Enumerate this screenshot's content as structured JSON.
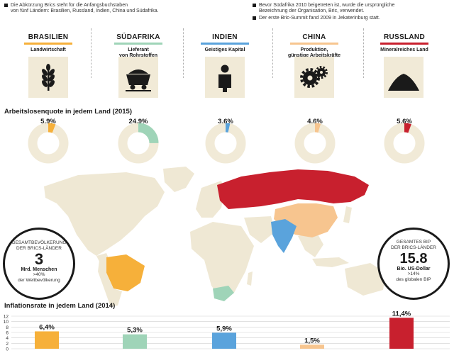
{
  "notes": {
    "left": [
      "Die Abkürzung Brics steht für die Anfangsbuchstaben",
      "von fünf Ländern: Brasilien, Russland, Indien, China und Südafrika."
    ],
    "right1": [
      "Bevor Südafrika 2010 beigetreten ist, wurde die ursprüngliche",
      "Bezeichnung der Organisation, Bric, verwendet."
    ],
    "right2": [
      "Der erste Bric-Summit fand 2009 in Jekaterinburg statt."
    ]
  },
  "countries": [
    {
      "name": "BRASILIEN",
      "desc": [
        "Landwirtschaft"
      ],
      "color": "#f6b03a",
      "icon": "wheat-icon"
    },
    {
      "name": "SÜDAFRIKA",
      "desc": [
        "Lieferant",
        "von Rohrstoffen"
      ],
      "color": "#9fd4b8",
      "icon": "mine-cart-icon"
    },
    {
      "name": "INDIEN",
      "desc": [
        "Geistiges Kapital"
      ],
      "color": "#5aa3dc",
      "icon": "person-icon"
    },
    {
      "name": "CHINA",
      "desc": [
        "Produktion,",
        "günstige Arbeitskräfte"
      ],
      "color": "#f7c58f",
      "icon": "gears-icon"
    },
    {
      "name": "RUSSLAND",
      "desc": [
        "Mineralreiches Land"
      ],
      "color": "#c8202e",
      "icon": "mountain-icon"
    }
  ],
  "unemployment_title": "Arbeitslosenquote in jedem Land (2015)",
  "population": {
    "head": [
      "GESAMTBEVÖLKERUNG",
      "DER BRICS-LÄNDER"
    ],
    "value": "3",
    "unit": "Mrd. Menschen",
    "foot": [
      ">40%",
      "der Weltbevölkerung"
    ]
  },
  "gdp": {
    "head": [
      "GESAMTES BIP",
      "DER BRICS-LÄNDER"
    ],
    "value": "15.8",
    "unit": "Bio. US-Dollar",
    "foot": [
      ">14%",
      "des globalen BIP"
    ]
  },
  "inflation_title": "Inflationsrate in jedem Land (2014)",
  "chart_data": [
    {
      "type": "pie",
      "title": "Arbeitslosenquote in jedem Land (2015)",
      "categories": [
        "BRASILIEN",
        "SÜDAFRIKA",
        "INDIEN",
        "CHINA",
        "RUSSLAND"
      ],
      "values": [
        5.9,
        24.9,
        3.6,
        4.6,
        5.6
      ],
      "labels": [
        "5,9%",
        "24,9%",
        "3,6%",
        "4,6%",
        "5,6%"
      ],
      "colors": [
        "#f6b03a",
        "#9fd4b8",
        "#5aa3dc",
        "#f7c58f",
        "#c8202e"
      ]
    },
    {
      "type": "bar",
      "title": "Inflationsrate in jedem Land (2014)",
      "categories": [
        "BRASILIEN",
        "SÜDAFRIKA",
        "INDIEN",
        "CHINA",
        "RUSSLAND"
      ],
      "values": [
        6.4,
        5.3,
        5.9,
        1.5,
        11.4
      ],
      "labels": [
        "6,4%",
        "5,3%",
        "5,9%",
        "1,5%",
        "11,4%"
      ],
      "colors": [
        "#f6b03a",
        "#9fd4b8",
        "#5aa3dc",
        "#f7c58f",
        "#c8202e"
      ],
      "yticks": [
        "12",
        "10",
        "8",
        "6",
        "4",
        "2",
        "0"
      ],
      "ylim": [
        0,
        12
      ]
    }
  ]
}
